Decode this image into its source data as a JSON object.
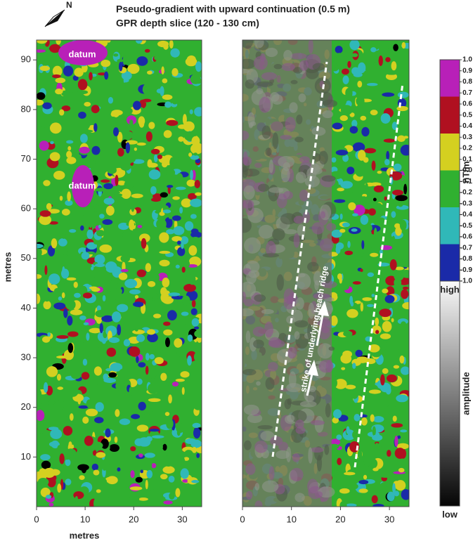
{
  "title": "Pseudo-gradient with upward continuation (0.5 m)",
  "subtitle": "GPR depth slice (120 - 130 cm)",
  "north": "N",
  "xlabel": "metres",
  "ylabel": "metres",
  "panels": [
    {
      "xlim": [
        0,
        34
      ],
      "xticks": [
        0,
        10,
        20,
        30
      ],
      "ylim": [
        0,
        94
      ],
      "yticks": [
        10,
        20,
        30,
        40,
        50,
        60,
        70,
        80,
        90
      ],
      "annotations": [
        "datum",
        "datum"
      ]
    },
    {
      "xlim": [
        0,
        34
      ],
      "xticks": [
        0,
        10,
        20,
        30
      ],
      "annotation": "strike of underlying beach ridge"
    }
  ],
  "colorbar": {
    "label": "nT/m",
    "lim": [
      -1,
      1
    ],
    "colors": [
      "#b820b8",
      "#b01020",
      "#d4d020",
      "#30b030",
      "#30b8b8",
      "#1a2aa8"
    ],
    "ticks": [
      {
        "value": 1,
        "label": "1.0"
      },
      {
        "value": 0.9,
        "label": "0.9"
      },
      {
        "value": 0.8,
        "label": "0.8"
      },
      {
        "value": 0.7,
        "label": "0.7"
      },
      {
        "value": 0.6,
        "label": "0.6"
      },
      {
        "value": 0.5,
        "label": "0.5"
      },
      {
        "value": 0.4,
        "label": "0.4"
      },
      {
        "value": 0.3,
        "label": "0.3"
      },
      {
        "value": 0.2,
        "label": "0.2"
      },
      {
        "value": 0.1,
        "label": "0.1"
      },
      {
        "value": 0,
        "label": "-0.0"
      },
      {
        "value": -0.1,
        "label": "-0.1"
      },
      {
        "value": -0.2,
        "label": "-0.2"
      },
      {
        "value": -0.3,
        "label": "-0.3"
      },
      {
        "value": -0.4,
        "label": "-0.4"
      },
      {
        "value": -0.5,
        "label": "-0.5"
      },
      {
        "value": -0.6,
        "label": "-0.6"
      },
      {
        "value": -0.7,
        "label": "-0.7"
      },
      {
        "value": -0.8,
        "label": "-0.8"
      },
      {
        "value": -0.9,
        "label": "-0.9"
      },
      {
        "value": -1,
        "label": "-1.0"
      }
    ]
  },
  "amplitude": {
    "label": "amplitude",
    "high": "high",
    "low": "low"
  }
}
